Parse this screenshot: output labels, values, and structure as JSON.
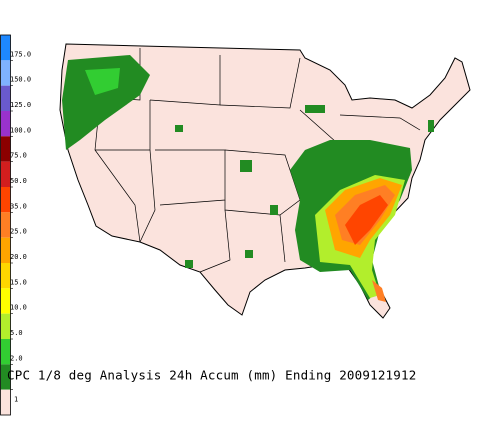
{
  "title": "CPC 1/8 deg Analysis 24h Accum (mm) Ending 2009121912",
  "colorbar": {
    "colors": [
      "#1e88ff",
      "#7fb2ff",
      "#6a5acd",
      "#9932cc",
      "#8b0000",
      "#d21e1e",
      "#ff4500",
      "#ff7f24",
      "#ffa500",
      "#ffd700",
      "#ffff00",
      "#b2ee2c",
      "#32cd32",
      "#228b22",
      "#fbe3dd"
    ],
    "ticks": [
      {
        "value": 175,
        "label": "175.0"
      },
      {
        "value": 150,
        "label": "150.0"
      },
      {
        "value": 125,
        "label": "125.0"
      },
      {
        "value": 100,
        "label": "100.0"
      },
      {
        "value": 75,
        "label": "75.0"
      },
      {
        "value": 50,
        "label": "50.0"
      },
      {
        "value": 35,
        "label": "35.0"
      },
      {
        "value": 25,
        "label": "25.0"
      },
      {
        "value": 20,
        "label": "20.0"
      },
      {
        "value": 15,
        "label": "15.0"
      },
      {
        "value": 10,
        "label": "10.0"
      },
      {
        "value": 5,
        "label": "5.0"
      },
      {
        "value": 2,
        "label": "2.0"
      },
      1
    ]
  }
}
